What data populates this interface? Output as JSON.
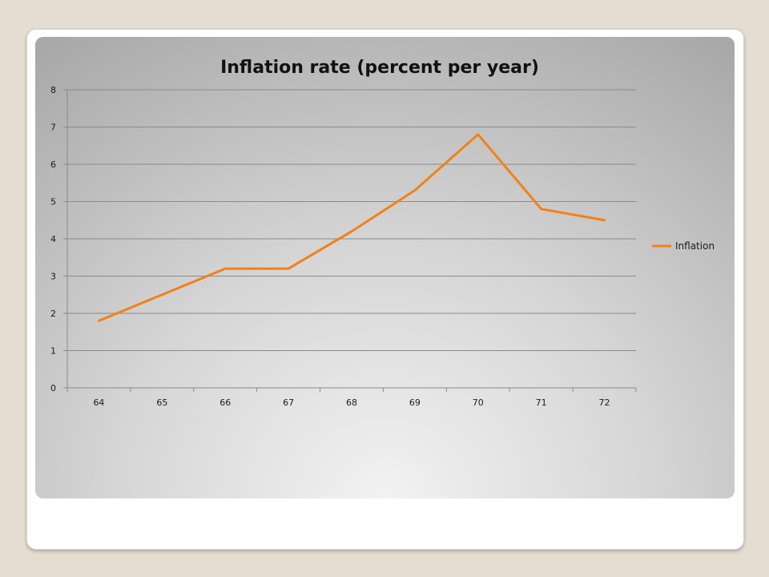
{
  "chart_data": {
    "type": "line",
    "title": "Inflation rate (percent per year)",
    "xlabel": "",
    "ylabel": "",
    "categories": [
      "64",
      "65",
      "66",
      "67",
      "68",
      "69",
      "70",
      "71",
      "72"
    ],
    "series": [
      {
        "name": "Inflation",
        "values": [
          1.8,
          2.5,
          3.2,
          3.2,
          4.2,
          5.3,
          6.8,
          4.8,
          4.5
        ],
        "color": "#f28118"
      }
    ],
    "ylim": [
      0,
      8
    ],
    "yticks": [
      "0",
      "1",
      "2",
      "3",
      "4",
      "5",
      "6",
      "7",
      "8"
    ],
    "grid": "horizontal",
    "legend_position": "right"
  }
}
